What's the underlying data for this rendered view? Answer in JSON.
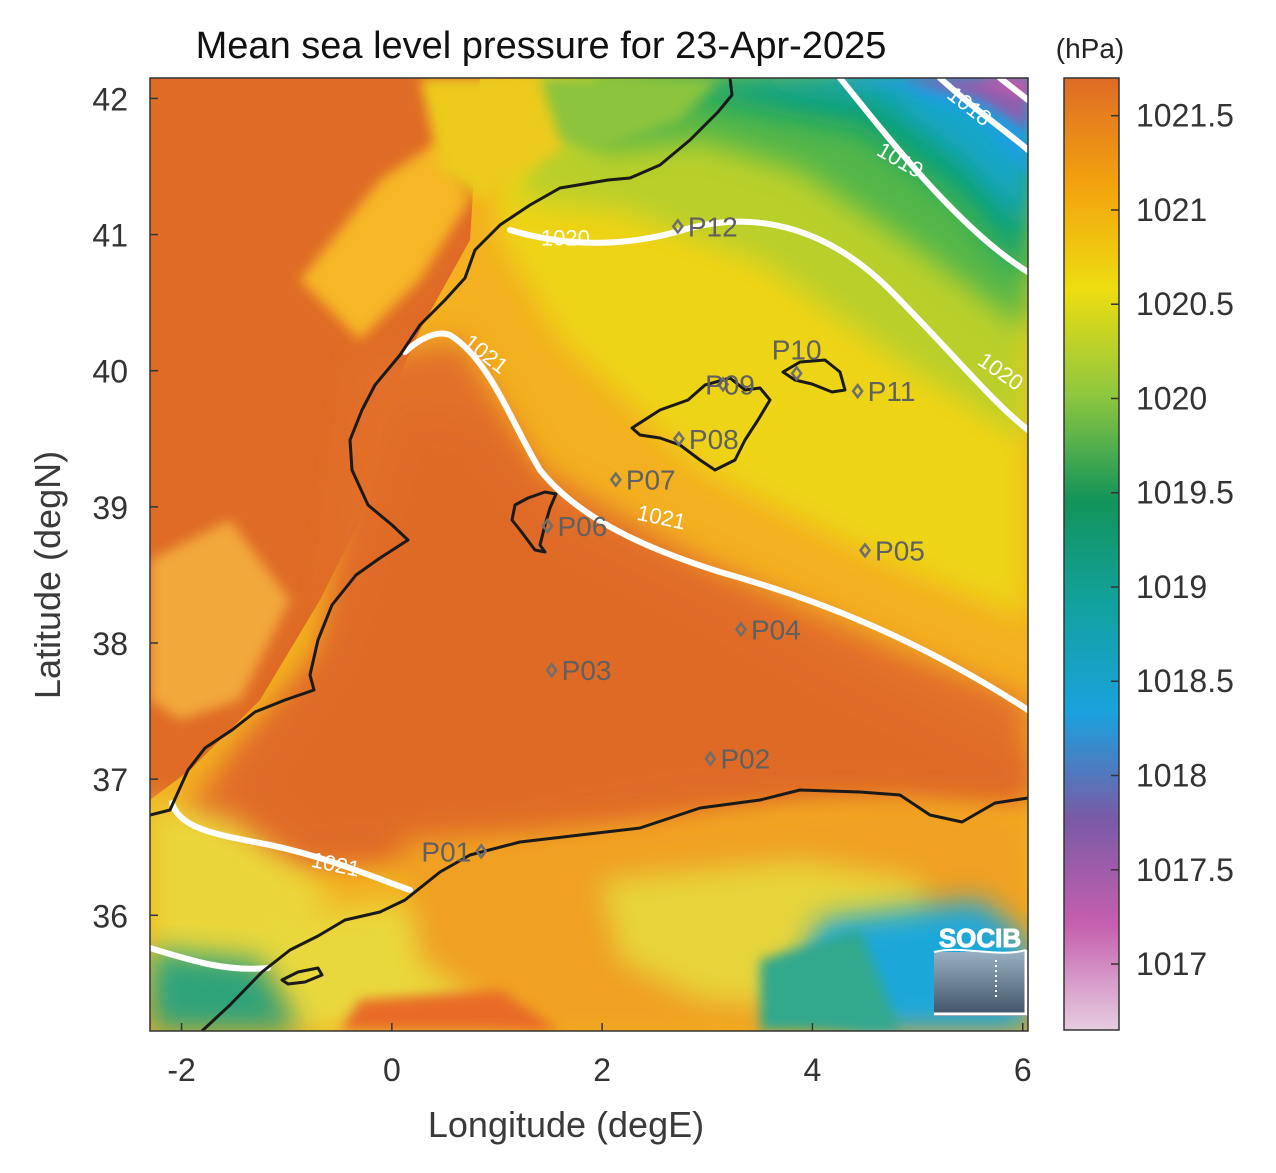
{
  "title": "Mean sea level pressure for 23-Apr-2025",
  "unit_label": "(hPa)",
  "logo_text": "SOCIB",
  "x_axis": {
    "label": "Longitude (degE)",
    "min": -2.3,
    "max": 6.05,
    "ticks": [
      {
        "v": -2,
        "t": "-2"
      },
      {
        "v": 0,
        "t": "0"
      },
      {
        "v": 2,
        "t": "2"
      },
      {
        "v": 4,
        "t": "4"
      },
      {
        "v": 6,
        "t": "6"
      }
    ]
  },
  "y_axis": {
    "label": "Latitude (degN)",
    "min": 35.15,
    "max": 42.15,
    "ticks": [
      {
        "v": 36,
        "t": "36"
      },
      {
        "v": 37,
        "t": "37"
      },
      {
        "v": 38,
        "t": "38"
      },
      {
        "v": 39,
        "t": "39"
      },
      {
        "v": 40,
        "t": "40"
      },
      {
        "v": 41,
        "t": "41"
      },
      {
        "v": 42,
        "t": "42"
      }
    ]
  },
  "colorbar": {
    "min": 1016.65,
    "max": 1021.7,
    "ticks": [
      {
        "v": 1017,
        "t": "1017"
      },
      {
        "v": 1017.5,
        "t": "1017.5"
      },
      {
        "v": 1018,
        "t": "1018"
      },
      {
        "v": 1018.5,
        "t": "1018.5"
      },
      {
        "v": 1019,
        "t": "1019"
      },
      {
        "v": 1019.5,
        "t": "1019.5"
      },
      {
        "v": 1020,
        "t": "1020"
      },
      {
        "v": 1020.5,
        "t": "1020.5"
      },
      {
        "v": 1021,
        "t": "1021"
      },
      {
        "v": 1021.5,
        "t": "1021.5"
      }
    ],
    "colors": [
      "#e6cde0",
      "#c55fae",
      "#7a5aa6",
      "#1aa2dd",
      "#12a2a0",
      "#12945a",
      "#8ec73f",
      "#eedd10",
      "#f2a20e",
      "#df6b26"
    ]
  },
  "stations": [
    {
      "name": "P01",
      "lon": 0.85,
      "lat": 36.47,
      "side": "left"
    },
    {
      "name": "P02",
      "lon": 3.03,
      "lat": 37.15,
      "side": "right"
    },
    {
      "name": "P03",
      "lon": 1.52,
      "lat": 37.8,
      "side": "right"
    },
    {
      "name": "P04",
      "lon": 3.32,
      "lat": 38.1,
      "side": "right"
    },
    {
      "name": "P05",
      "lon": 4.5,
      "lat": 38.68,
      "side": "right"
    },
    {
      "name": "P06",
      "lon": 1.48,
      "lat": 38.86,
      "side": "right"
    },
    {
      "name": "P07",
      "lon": 2.13,
      "lat": 39.2,
      "side": "right"
    },
    {
      "name": "P08",
      "lon": 2.73,
      "lat": 39.5,
      "side": "right"
    },
    {
      "name": "P09",
      "lon": 3.15,
      "lat": 39.9,
      "side": "overlap"
    },
    {
      "name": "P10",
      "lon": 3.85,
      "lat": 39.98,
      "side": "above"
    },
    {
      "name": "P11",
      "lon": 4.43,
      "lat": 39.85,
      "side": "right"
    },
    {
      "name": "P12",
      "lon": 2.72,
      "lat": 41.06,
      "side": "right"
    }
  ],
  "contours": [
    {
      "level": "1018",
      "label_lon": 5.45,
      "label_lat": 41.9
    },
    {
      "level": "1019",
      "label_lon": 4.8,
      "label_lat": 41.5
    },
    {
      "level": "1020",
      "label_lon": 1.65,
      "label_lat": 40.92
    },
    {
      "level": "1020",
      "label_lon": 5.75,
      "label_lat": 39.95
    },
    {
      "level": "1021",
      "label_lon": 0.85,
      "label_lat": 40.08
    },
    {
      "level": "1021",
      "label_lon": 2.55,
      "label_lat": 38.87
    },
    {
      "level": "1021",
      "label_lon": -0.55,
      "label_lat": 36.32
    }
  ],
  "colors": {
    "coast": "#1a1a1a",
    "contour": "#ffffff",
    "station": "#6e6e6e",
    "logo": "#4ea6d4"
  }
}
